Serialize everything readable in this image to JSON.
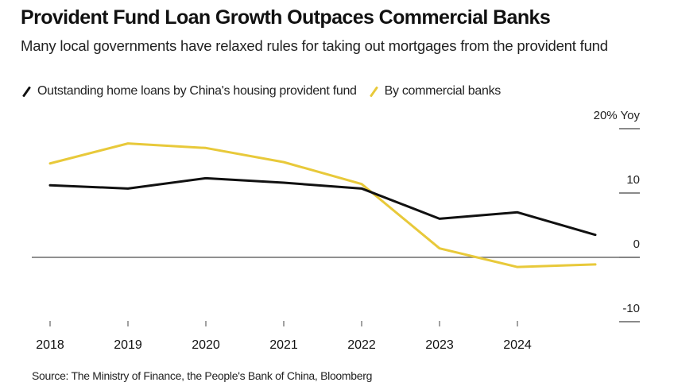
{
  "header": {
    "title": "Provident Fund Loan Growth Outpaces Commercial Banks",
    "subtitle": "Many local governments have relaxed rules for taking out mortgages from the provident fund"
  },
  "source": "Source: The Ministry of Finance, the People's Bank of China, Bloomberg",
  "chart_data": {
    "type": "line",
    "title": "Provident Fund Loan Growth Outpaces Commercial Banks",
    "subtitle": "Many local governments have relaxed rules for taking out mortgages from the provident fund",
    "xlabel": "",
    "ylabel": "% Yoy",
    "x": [
      2018,
      2019,
      2020,
      2021,
      2022,
      2023,
      2024,
      2025
    ],
    "x_tick_labels": [
      "2018",
      "2019",
      "2020",
      "2021",
      "2022",
      "2023",
      "2024"
    ],
    "y_ticks": [
      20,
      10,
      0,
      -10
    ],
    "y_tick_labels": [
      "20% Yoy",
      "10",
      "0",
      "-10"
    ],
    "ylim": [
      -12,
      22
    ],
    "xlim": [
      2017.9,
      2025.6
    ],
    "grid": false,
    "zero_line": true,
    "legend_position": "top-left",
    "series": [
      {
        "name": "Outstanding home loans by China's housing provident fund",
        "color": "#111111",
        "values": [
          11.2,
          10.7,
          12.3,
          11.6,
          10.7,
          6.0,
          7.0,
          3.5
        ]
      },
      {
        "name": "By commercial banks",
        "color": "#E8C93A",
        "values": [
          14.6,
          17.7,
          17.0,
          14.8,
          11.4,
          1.4,
          -1.5,
          -1.1
        ]
      }
    ]
  }
}
